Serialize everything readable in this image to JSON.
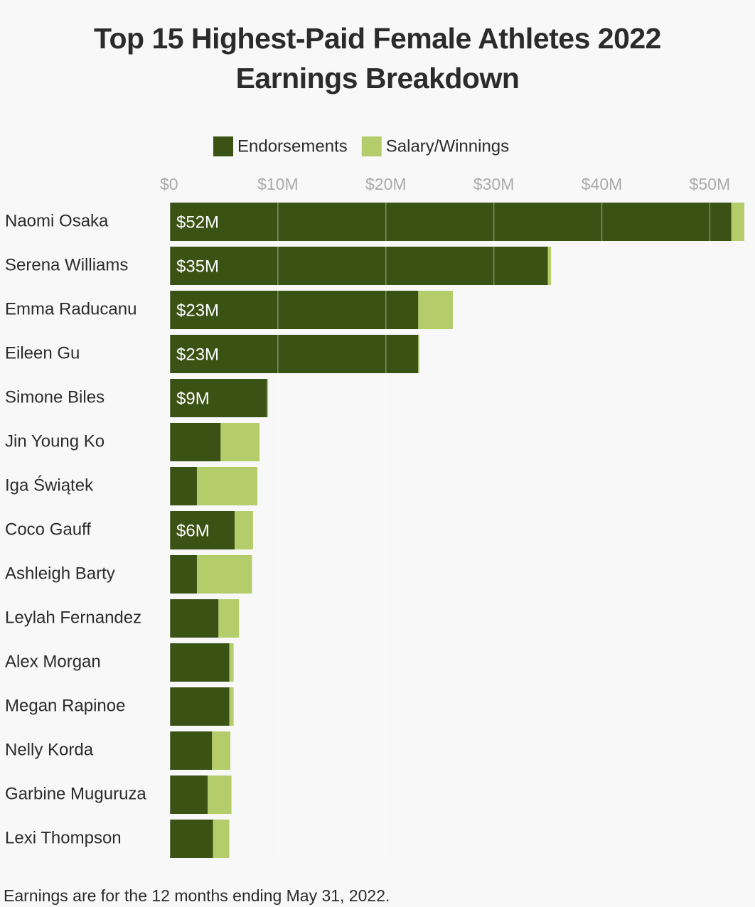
{
  "chart_data": {
    "type": "stacked-bar-horizontal",
    "title": "Top 15 Highest-Paid Female Athletes 2022 Earnings Breakdown",
    "categories": [
      "Naomi Osaka",
      "Serena Williams",
      "Emma Raducanu",
      "Eileen Gu",
      "Simone Biles",
      "Jin Young Ko",
      "Iga Świątek",
      "Coco Gauff",
      "Ashleigh Barty",
      "Leylah Fernandez",
      "Alex Morgan",
      "Megan Rapinoe",
      "Nelly Korda",
      "Garbine Muguruza",
      "Lexi Thompson"
    ],
    "series": [
      {
        "name": "Endorsements",
        "color": "#3a5214",
        "values": [
          52,
          35,
          23,
          23,
          9,
          4.7,
          2.5,
          6,
          2.5,
          4.5,
          5.5,
          5.5,
          3.9,
          3.5,
          4.0
        ],
        "value_labels": [
          "$52M",
          "$35M",
          "$23M",
          "$23M",
          "$9M",
          null,
          null,
          "$6M",
          null,
          null,
          null,
          null,
          null,
          null,
          null
        ]
      },
      {
        "name": "Salary/Winnings",
        "color": "#b5cc6a",
        "values": [
          1.2,
          0.3,
          3.2,
          0.1,
          0.1,
          3.6,
          5.6,
          1.7,
          5.1,
          1.9,
          0.4,
          0.4,
          1.7,
          2.2,
          1.5
        ]
      }
    ],
    "xlim": [
      0,
      53.2
    ],
    "xticks": [
      {
        "value": 0,
        "label": "$0"
      },
      {
        "value": 10,
        "label": "$10M"
      },
      {
        "value": 20,
        "label": "$20M"
      },
      {
        "value": 30,
        "label": "$30M"
      },
      {
        "value": 40,
        "label": "$40M"
      },
      {
        "value": 50,
        "label": "$50M"
      }
    ],
    "grid": true,
    "legend": "top",
    "note": "Earnings are for the 12 months ending May 31, 2022."
  }
}
